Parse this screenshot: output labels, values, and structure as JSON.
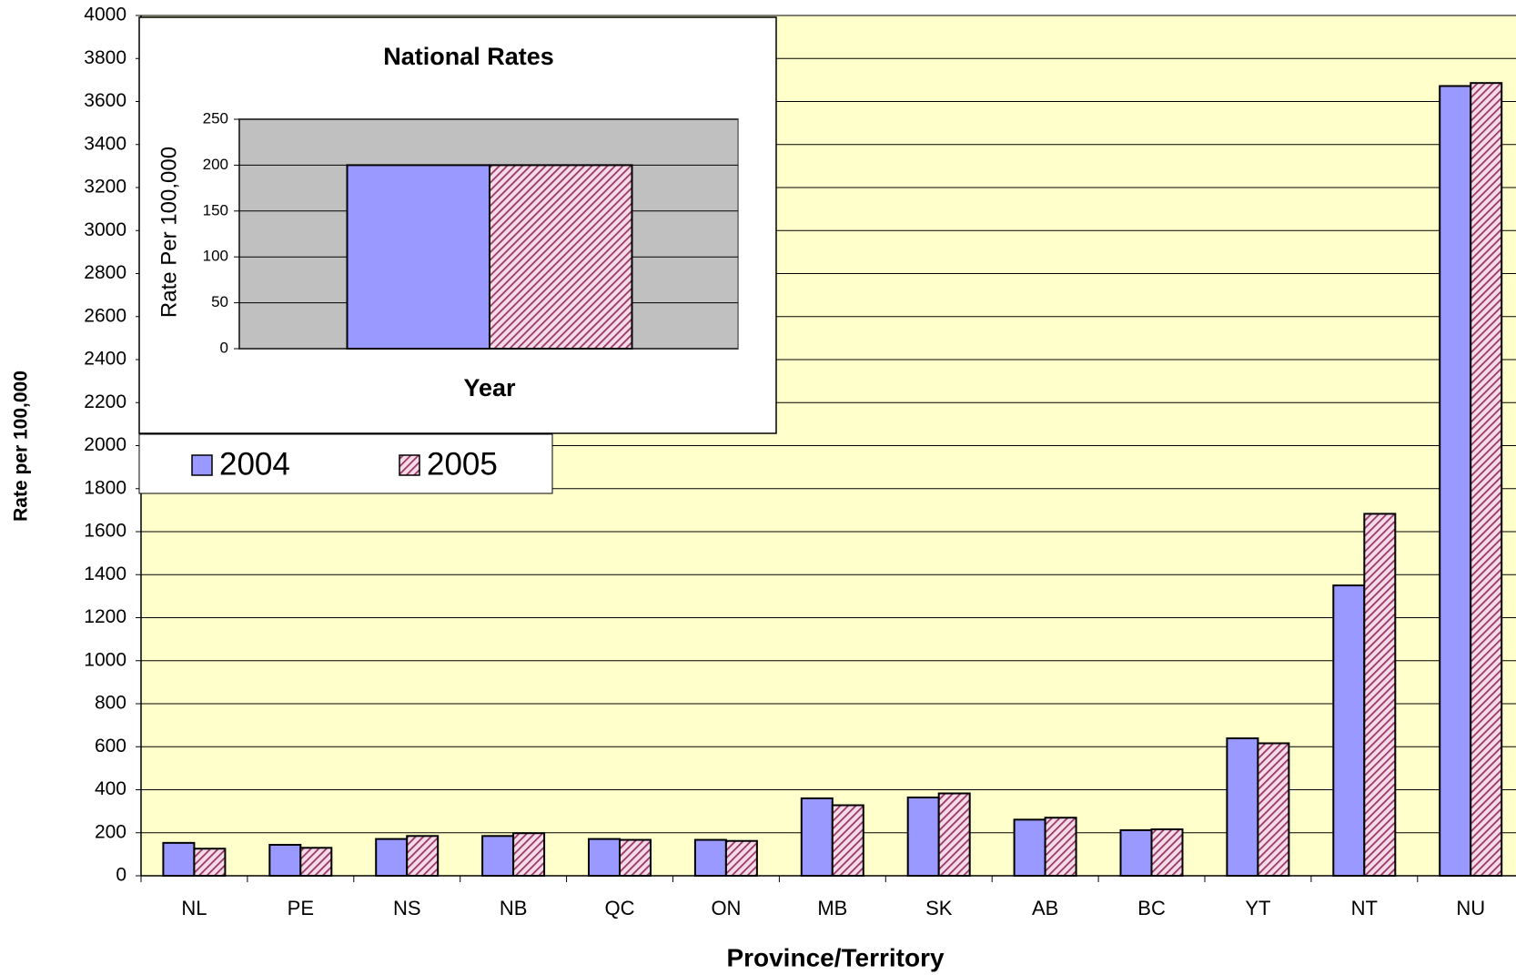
{
  "chart_data": [
    {
      "type": "bar",
      "x_label": "Province/Territory",
      "y_label": "Rate per 100,000",
      "categories": [
        "NL",
        "PE",
        "NS",
        "NB",
        "QC",
        "ON",
        "MB",
        "SK",
        "AB",
        "BC",
        "YT",
        "NT",
        "NU"
      ],
      "series": [
        {
          "name": "2004",
          "color": "#9999ff",
          "values": [
            153,
            144,
            171,
            185,
            171,
            167,
            360,
            364,
            261,
            212,
            639,
            1350,
            3672
          ]
        },
        {
          "name": "2005",
          "color": "#993366",
          "hatch": true,
          "values": [
            126,
            130,
            185,
            198,
            167,
            162,
            328,
            383,
            270,
            216,
            616,
            1683,
            3686
          ]
        }
      ],
      "ylim": [
        0,
        4000
      ],
      "yticks": [
        0,
        200,
        400,
        600,
        800,
        1000,
        1200,
        1400,
        1600,
        1800,
        2000,
        2200,
        2400,
        2600,
        2800,
        3000,
        3200,
        3400,
        3600,
        3800,
        4000
      ],
      "grid": true,
      "background": "#ffffcc"
    },
    {
      "type": "bar",
      "title": "National Rates",
      "x_label": "Year",
      "y_label": "Rate Per 100,000",
      "series": [
        {
          "color": "#9999ff",
          "values": [
            200
          ]
        },
        {
          "color": "#993366",
          "hatch": true,
          "values": [
            200
          ]
        }
      ],
      "ylim": [
        0,
        250
      ],
      "yticks": [
        0,
        50,
        100,
        150,
        200,
        250
      ],
      "grid": true,
      "background": "#c0c0c0"
    }
  ]
}
